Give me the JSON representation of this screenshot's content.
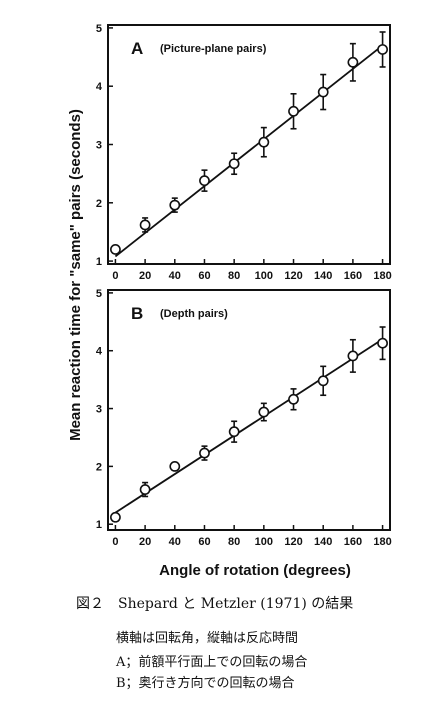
{
  "figure": {
    "ylabel": "Mean reaction time for \"same\" pairs (seconds)",
    "xlabel": "Angle of rotation (degrees)"
  },
  "chart_data": [
    {
      "panel": "A",
      "title": "(Picture-plane pairs)",
      "type": "scatter",
      "x": [
        0,
        20,
        40,
        60,
        80,
        100,
        120,
        140,
        160,
        180
      ],
      "y": [
        1.2,
        1.62,
        1.96,
        2.38,
        2.67,
        3.04,
        3.57,
        3.9,
        4.41,
        4.63
      ],
      "err": [
        0.05,
        0.12,
        0.12,
        0.18,
        0.18,
        0.25,
        0.3,
        0.3,
        0.32,
        0.3
      ],
      "fit": {
        "x": [
          0,
          180
        ],
        "y": [
          1.08,
          4.7
        ]
      },
      "xticks": [
        0,
        20,
        40,
        60,
        80,
        100,
        120,
        140,
        160,
        180
      ],
      "yticks": [
        1,
        2,
        3,
        4,
        5
      ],
      "xlim": [
        -5,
        185
      ],
      "ylim": [
        0.95,
        5.05
      ]
    },
    {
      "panel": "B",
      "title": "(Depth pairs)",
      "type": "scatter",
      "x": [
        0,
        20,
        40,
        60,
        80,
        100,
        120,
        140,
        160,
        180
      ],
      "y": [
        1.12,
        1.6,
        2.0,
        2.23,
        2.6,
        2.94,
        3.16,
        3.48,
        3.91,
        4.13
      ],
      "err": [
        0.0,
        0.12,
        0.05,
        0.12,
        0.18,
        0.15,
        0.18,
        0.25,
        0.28,
        0.28
      ],
      "fit": {
        "x": [
          0,
          180
        ],
        "y": [
          1.2,
          4.2
        ]
      },
      "xticks": [
        0,
        20,
        40,
        60,
        80,
        100,
        120,
        140,
        160,
        180
      ],
      "yticks": [
        1,
        2,
        3,
        4,
        5
      ],
      "xlim": [
        -5,
        185
      ],
      "ylim": [
        0.9,
        5.05
      ]
    }
  ],
  "caption": {
    "main": "図２　Shepard と Metzler (1971) の結果",
    "line1": "横軸は回転角，縦軸は反応時間",
    "line2": "A；前額平行面上での回転の場合",
    "line3": "B；奥行き方向での回転の場合"
  }
}
